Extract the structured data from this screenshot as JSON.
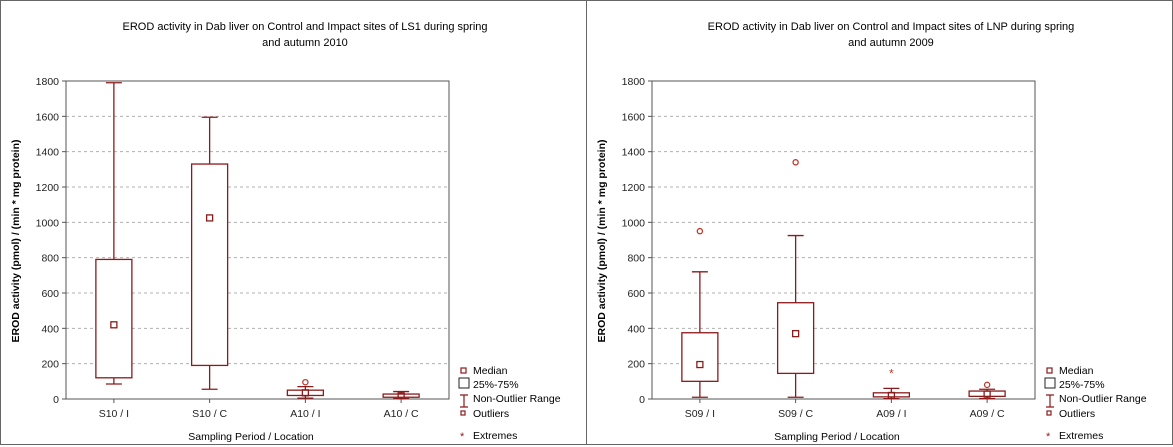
{
  "colors": {
    "box": "#8b1a1a",
    "grid": "#b0b0b0",
    "frame": "#555555",
    "text": "#222222",
    "outlier": "#c0392b"
  },
  "legend": {
    "median": "Median",
    "box": "25%-75%",
    "whisker": "Non-Outlier Range",
    "outliers": "Outliers",
    "extremes": "Extremes"
  },
  "chart_data": [
    {
      "type": "box",
      "title_line1": "EROD activity in Dab liver on Control and Impact sites of LS1 during spring",
      "title_line2": "and autumn 2010",
      "xlabel": "Sampling Period / Location",
      "ylabel": "EROD activity (pmol) / (min * mg protein)",
      "ylim": [
        0,
        1800
      ],
      "yticks": [
        0,
        200,
        400,
        600,
        800,
        1000,
        1200,
        1400,
        1600,
        1800
      ],
      "grid": true,
      "legend_position": "bottom-right",
      "categories": [
        "S10 / I",
        "S10 / C",
        "A10 / I",
        "A10 / C"
      ],
      "boxes": [
        {
          "median": 420,
          "q1": 120,
          "q3": 790,
          "min": 85,
          "max": 1790,
          "outliers": [],
          "extremes": []
        },
        {
          "median": 1025,
          "q1": 190,
          "q3": 1330,
          "min": 55,
          "max": 1595,
          "outliers": [],
          "extremes": []
        },
        {
          "median": 35,
          "q1": 20,
          "q3": 50,
          "min": 5,
          "max": 70,
          "outliers": [
            95
          ],
          "extremes": []
        },
        {
          "median": 18,
          "q1": 10,
          "q3": 28,
          "min": 3,
          "max": 42,
          "outliers": [],
          "extremes": []
        }
      ]
    },
    {
      "type": "box",
      "title_line1": "EROD activity in Dab liver on Control and Impact sites of LNP during spring",
      "title_line2": "and autumn 2009",
      "xlabel": "Sampling Period / Location",
      "ylabel": "EROD activity (pmol) / (min * mg protein)",
      "ylim": [
        0,
        1800
      ],
      "yticks": [
        0,
        200,
        400,
        600,
        800,
        1000,
        1200,
        1400,
        1600,
        1800
      ],
      "grid": true,
      "legend_position": "bottom-right",
      "categories": [
        "S09 / I",
        "S09 / C",
        "A09 / I",
        "A09 / C"
      ],
      "boxes": [
        {
          "median": 195,
          "q1": 100,
          "q3": 375,
          "min": 10,
          "max": 720,
          "outliers": [
            950
          ],
          "extremes": []
        },
        {
          "median": 370,
          "q1": 145,
          "q3": 545,
          "min": 10,
          "max": 925,
          "outliers": [
            1340
          ],
          "extremes": []
        },
        {
          "median": 20,
          "q1": 12,
          "q3": 35,
          "min": 2,
          "max": 60,
          "outliers": [],
          "extremes": [
            150
          ]
        },
        {
          "median": 28,
          "q1": 15,
          "q3": 45,
          "min": 3,
          "max": 55,
          "outliers": [
            80
          ],
          "extremes": []
        }
      ]
    }
  ]
}
